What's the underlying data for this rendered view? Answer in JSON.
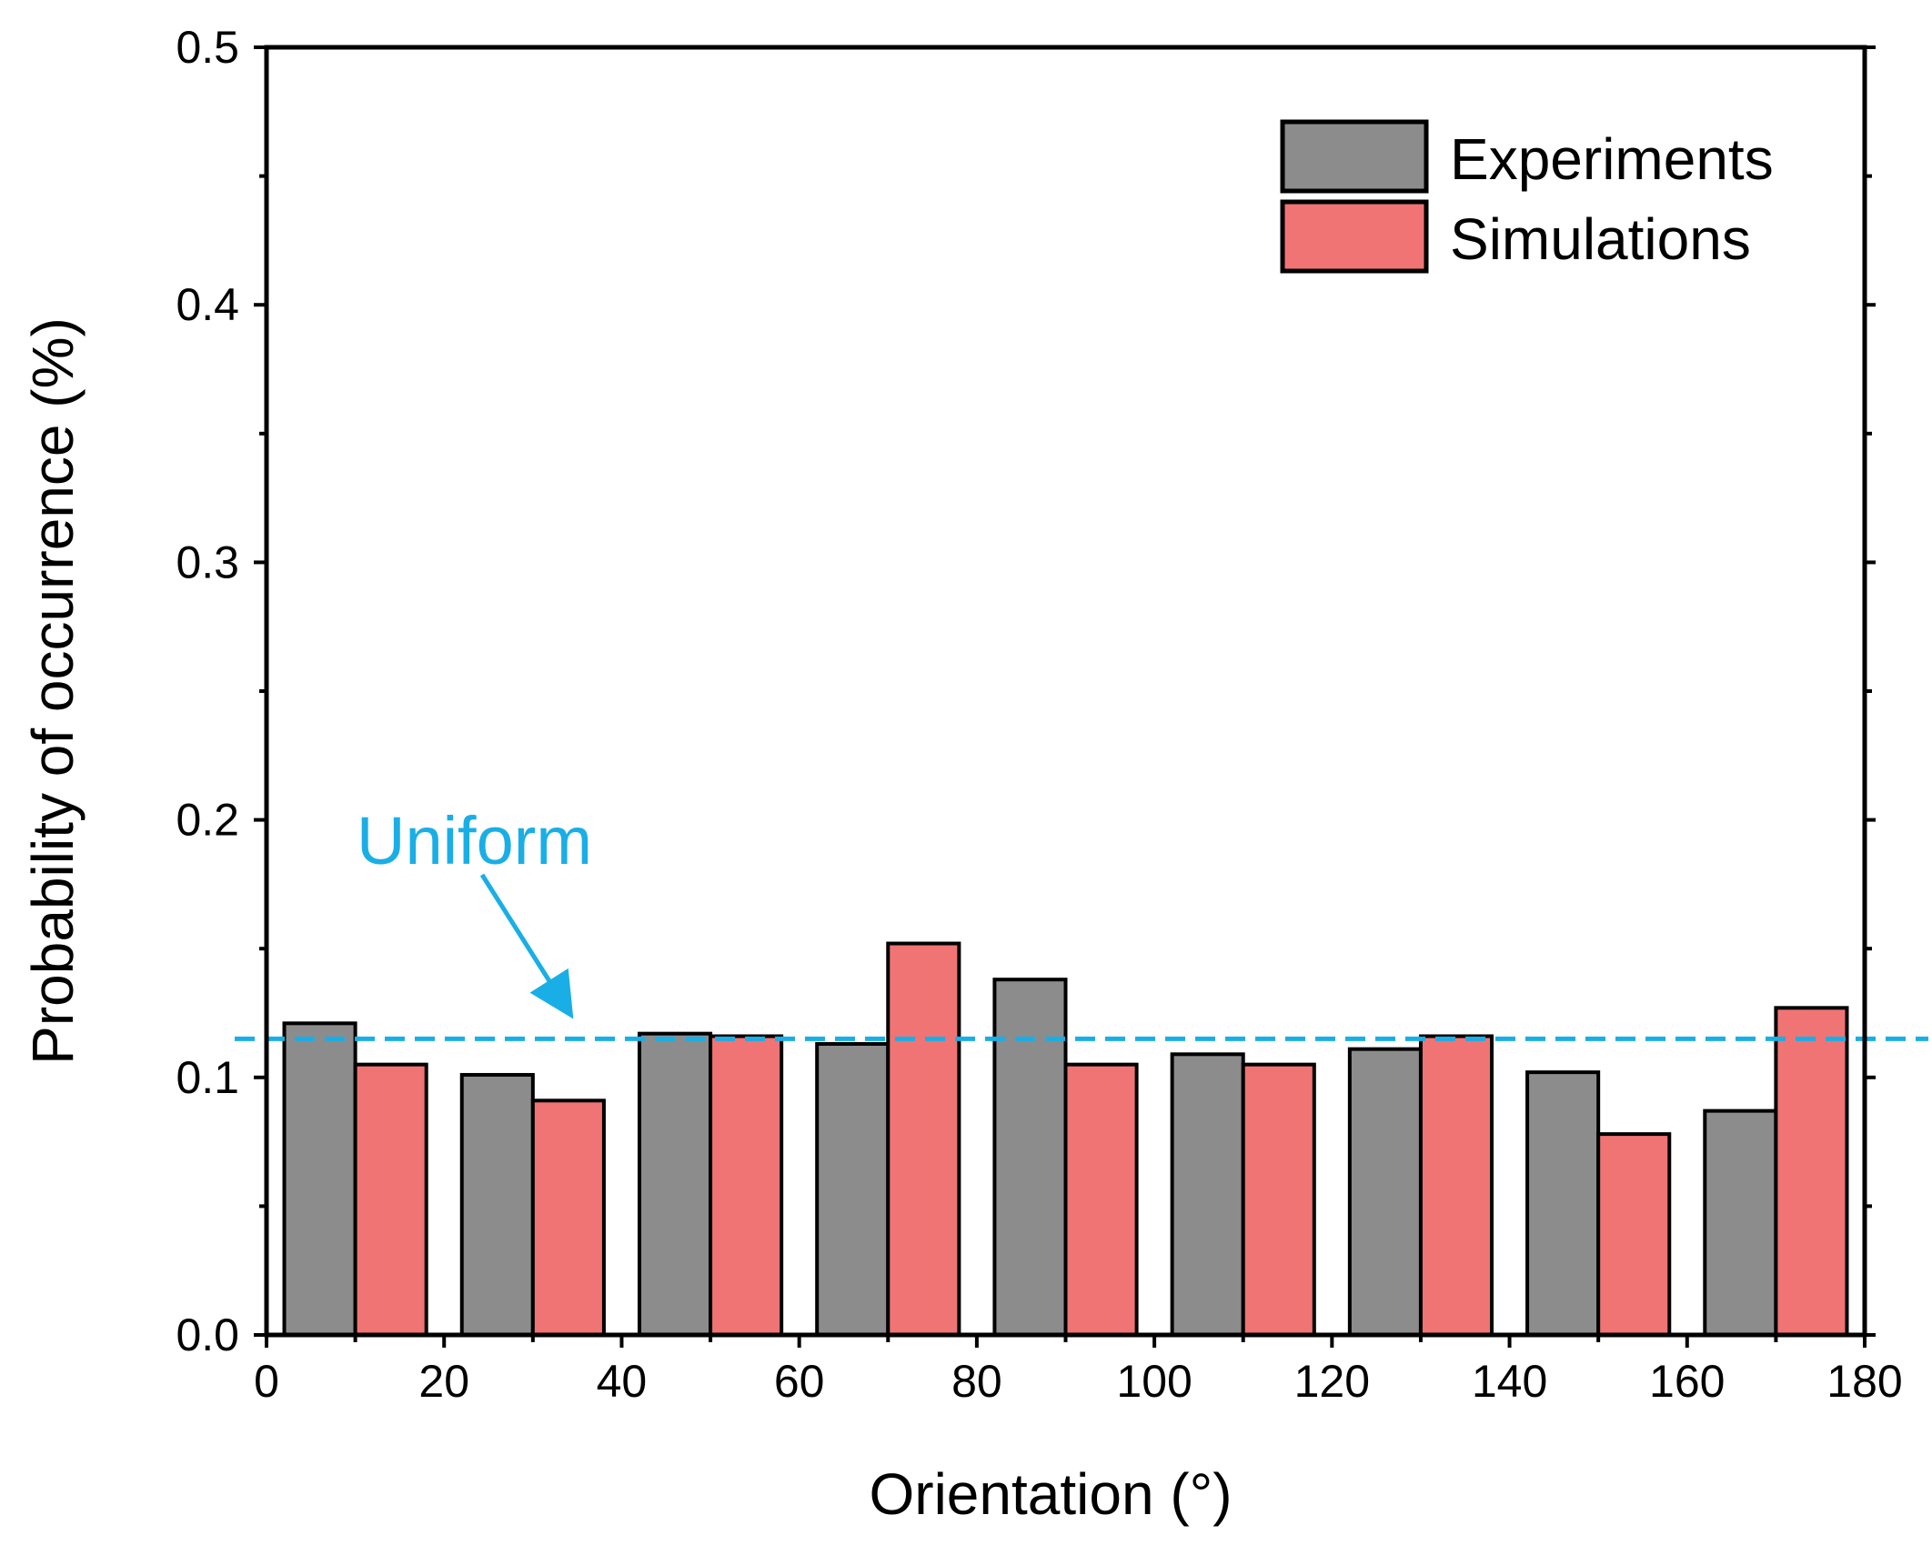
{
  "chart_data": {
    "type": "bar",
    "title": "",
    "xlabel": "Orientation (°)",
    "ylabel": "Probability of occurrence (%)",
    "xlim": [
      0,
      180
    ],
    "ylim": [
      0,
      0.5
    ],
    "x_ticks": [
      "0",
      "20",
      "40",
      "60",
      "80",
      "100",
      "120",
      "140",
      "160",
      "180"
    ],
    "y_ticks": [
      "0.0",
      "0.1",
      "0.2",
      "0.3",
      "0.4",
      "0.5"
    ],
    "bin_width": 20,
    "bins": [
      [
        2,
        18
      ],
      [
        22,
        38
      ],
      [
        42,
        58
      ],
      [
        62,
        78
      ],
      [
        82,
        98
      ],
      [
        102,
        118
      ],
      [
        122,
        138
      ],
      [
        142,
        158
      ],
      [
        162,
        178
      ]
    ],
    "series": [
      {
        "name": "Experiments",
        "color": "#8c8c8c",
        "values": [
          0.121,
          0.101,
          0.117,
          0.113,
          0.138,
          0.109,
          0.111,
          0.102,
          0.087
        ]
      },
      {
        "name": "Simulations",
        "color": "#f07474",
        "values": [
          0.105,
          0.091,
          0.116,
          0.152,
          0.105,
          0.105,
          0.116,
          0.078,
          0.127
        ]
      }
    ],
    "legend": {
      "position": "top-right",
      "entries": [
        "Experiments",
        "Simulations"
      ]
    },
    "reference_line": {
      "label": "Uniform",
      "value": 0.115,
      "color": "#1aaee6",
      "style": "dashed"
    },
    "annotation": {
      "text": "Uniform",
      "color": "#1aaee6",
      "points_to": {
        "x": 35,
        "y": 0.115
      }
    }
  }
}
